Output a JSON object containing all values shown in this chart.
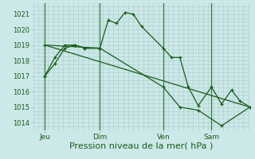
{
  "bg_color": "#cce8e8",
  "grid_color": "#aacccc",
  "line_color": "#1a5c1a",
  "xlabel": "Pression niveau de la mer( hPa )",
  "xlabel_fontsize": 8,
  "ytick_labels": [
    "1014",
    "1015",
    "1016",
    "1017",
    "1018",
    "1019",
    "1020",
    "1021"
  ],
  "ytick_vals": [
    1014,
    1015,
    1016,
    1017,
    1018,
    1019,
    1020,
    1021
  ],
  "ylim": [
    1013.5,
    1021.7
  ],
  "xlim": [
    0,
    130
  ],
  "xtick_labels": [
    "Jeu",
    "Dim",
    "Ven",
    "Sam"
  ],
  "xtick_positions": [
    7,
    40,
    78,
    107
  ],
  "vline_positions": [
    7,
    40,
    78,
    107
  ],
  "series1_x": [
    7,
    13,
    19,
    25,
    31,
    40,
    45,
    50,
    55,
    60,
    65,
    78,
    83,
    88,
    93,
    99,
    107,
    113,
    119,
    124,
    130
  ],
  "series1_y": [
    1017.0,
    1017.8,
    1018.8,
    1019.0,
    1018.8,
    1018.8,
    1020.6,
    1020.4,
    1021.1,
    1021.0,
    1020.2,
    1018.8,
    1018.2,
    1018.2,
    1016.3,
    1015.1,
    1016.3,
    1015.2,
    1016.1,
    1015.4,
    1015.0
  ],
  "series2_x": [
    7,
    13,
    19,
    25,
    31,
    40
  ],
  "series2_y": [
    1017.0,
    1018.2,
    1019.0,
    1019.0,
    1018.8,
    1018.8
  ],
  "series3_x": [
    7,
    40,
    78,
    88,
    99,
    113,
    130
  ],
  "series3_y": [
    1019.0,
    1018.8,
    1016.3,
    1015.0,
    1014.8,
    1013.8,
    1015.0
  ],
  "trend_x": [
    7,
    130
  ],
  "trend_y": [
    1019.0,
    1015.0
  ]
}
